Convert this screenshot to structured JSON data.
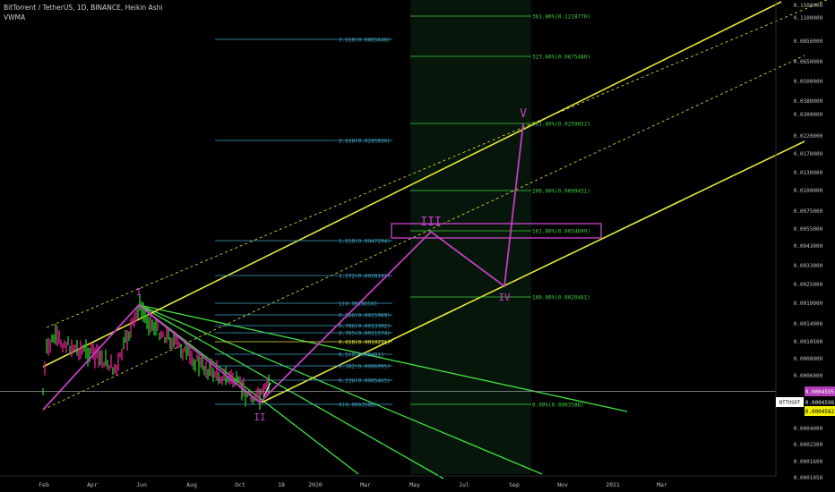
{
  "header": {
    "symbol_line": "BitTorrent / TetherUS, 1D, BINANCE, Heikin Ashi",
    "indicator": "VWMA"
  },
  "colors": {
    "background": "#000000",
    "candles_up": "#22c020",
    "candles_down": "#d8208c",
    "channel": "#e8e83a",
    "wave": "#c040c0",
    "fan": "#40e040",
    "fib_left": "#3fa6c8",
    "fib_right": "#40d040",
    "price_line": "#9a9a9a",
    "badge_purple": "#b23ab8",
    "badge_yellow": "#f0f000"
  },
  "price_axis": {
    "ticks": [
      "0.1500000",
      "0.1100000",
      "0.0850000",
      "0.0650000",
      "0.0500000",
      "0.0380000",
      "0.0300000",
      "0.0220000",
      "0.0170000",
      "0.0130000",
      "0.0100000",
      "0.0075000",
      "0.0055000",
      "0.0043000",
      "0.0033000",
      "0.0025000",
      "0.0019000",
      "0.0014000",
      "0.0010500",
      "0.0008000",
      "0.0006000",
      "0.0004000",
      "0.0002300",
      "0.0001600",
      "0.0001050"
    ],
    "badges": [
      {
        "text": "0.0004595",
        "style": "purple"
      },
      {
        "text": "0.0004596",
        "style": "black"
      },
      {
        "text": "0.0004582",
        "style": "yellow"
      }
    ],
    "symbol_tag": "BTTUSDT"
  },
  "time_axis": {
    "labels": [
      "Feb",
      "Apr",
      "Jun",
      "Aug",
      "Oct",
      "18",
      "2020",
      "Mar",
      "May",
      "Jul",
      "Sep",
      "Nov",
      "2021",
      "Mar"
    ]
  },
  "chart_data": {
    "type": "line",
    "title": "BitTorrent / TetherUS, 1D, BINANCE, Heikin Ashi",
    "y_scale": "log",
    "last_price": 0.0004595,
    "waves": [
      {
        "label": "I",
        "price": 0.00183
      },
      {
        "label": "II",
        "price": 0.00035
      },
      {
        "label": "III",
        "price": 0.0049
      },
      {
        "label": "IV",
        "price": 0.0023
      },
      {
        "label": "V",
        "price": 0.0259652
      }
    ],
    "fib_retracement_left": [
      {
        "level": "0",
        "text": "0(0.0003586)"
      },
      {
        "level": "0.236",
        "text": "0.236(0.0005465)"
      },
      {
        "level": "0.382",
        "text": "0.382(0.0006995)"
      },
      {
        "level": "0.5",
        "text": "0.5(0.0008401)"
      },
      {
        "level": "0.618",
        "text": "0.618(0.0010271)"
      },
      {
        "level": "0.705",
        "text": "0.705(0.0011574)"
      },
      {
        "level": "0.786",
        "text": "0.786(0.0013392)"
      },
      {
        "level": "0.886",
        "text": "0.886(0.0015989)"
      },
      {
        "level": "1",
        "text": "1(0.0018650)"
      },
      {
        "level": "1.272",
        "text": "1.272(0.0028191)"
      },
      {
        "level": "1.618",
        "text": "1.618(0.0047294)"
      },
      {
        "level": "2.618",
        "text": "2.618(0.0205930)"
      },
      {
        "level": "3.618",
        "text": "3.618(0.0885648)"
      }
    ],
    "fib_extension_right": [
      {
        "level": "0.00%",
        "text": "0.00%(0.0003586)"
      },
      {
        "level": "100.00%",
        "text": "100.00%(0.0020461)"
      },
      {
        "level": "161.80%",
        "text": "161.80%(0.0054699)"
      },
      {
        "level": "200.00%",
        "text": "200.00%(0.0099431)"
      },
      {
        "level": "261.80%",
        "text": "261.80%(0.0259652)"
      },
      {
        "level": "323.60%",
        "text": "323.60%(0.0675480)"
      },
      {
        "level": "361.80%",
        "text": "361.80%(0.1218770)"
      }
    ]
  }
}
